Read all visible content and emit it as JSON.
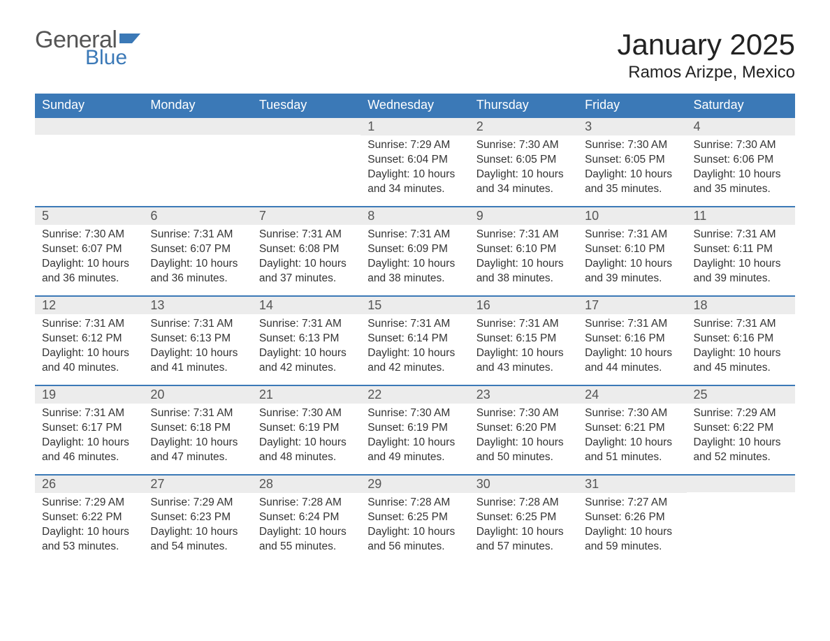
{
  "brand": {
    "word1": "General",
    "word2": "Blue"
  },
  "colors": {
    "accent": "#3b79b7",
    "header_bg": "#3b79b7",
    "header_text": "#ffffff",
    "daynum_bg": "#ececec",
    "body_text": "#333333",
    "page_bg": "#ffffff"
  },
  "typography": {
    "title_fontsize": 42,
    "location_fontsize": 24,
    "weekday_fontsize": 18,
    "body_fontsize": 15.5
  },
  "title": "January 2025",
  "location": "Ramos Arizpe, Mexico",
  "weekdays": [
    "Sunday",
    "Monday",
    "Tuesday",
    "Wednesday",
    "Thursday",
    "Friday",
    "Saturday"
  ],
  "layout": {
    "columns": 7,
    "rows": 5,
    "leading_blanks": 3,
    "trailing_blanks": 1
  },
  "days": [
    {
      "n": "1",
      "sunrise": "Sunrise: 7:29 AM",
      "sunset": "Sunset: 6:04 PM",
      "dl1": "Daylight: 10 hours",
      "dl2": "and 34 minutes."
    },
    {
      "n": "2",
      "sunrise": "Sunrise: 7:30 AM",
      "sunset": "Sunset: 6:05 PM",
      "dl1": "Daylight: 10 hours",
      "dl2": "and 34 minutes."
    },
    {
      "n": "3",
      "sunrise": "Sunrise: 7:30 AM",
      "sunset": "Sunset: 6:05 PM",
      "dl1": "Daylight: 10 hours",
      "dl2": "and 35 minutes."
    },
    {
      "n": "4",
      "sunrise": "Sunrise: 7:30 AM",
      "sunset": "Sunset: 6:06 PM",
      "dl1": "Daylight: 10 hours",
      "dl2": "and 35 minutes."
    },
    {
      "n": "5",
      "sunrise": "Sunrise: 7:30 AM",
      "sunset": "Sunset: 6:07 PM",
      "dl1": "Daylight: 10 hours",
      "dl2": "and 36 minutes."
    },
    {
      "n": "6",
      "sunrise": "Sunrise: 7:31 AM",
      "sunset": "Sunset: 6:07 PM",
      "dl1": "Daylight: 10 hours",
      "dl2": "and 36 minutes."
    },
    {
      "n": "7",
      "sunrise": "Sunrise: 7:31 AM",
      "sunset": "Sunset: 6:08 PM",
      "dl1": "Daylight: 10 hours",
      "dl2": "and 37 minutes."
    },
    {
      "n": "8",
      "sunrise": "Sunrise: 7:31 AM",
      "sunset": "Sunset: 6:09 PM",
      "dl1": "Daylight: 10 hours",
      "dl2": "and 38 minutes."
    },
    {
      "n": "9",
      "sunrise": "Sunrise: 7:31 AM",
      "sunset": "Sunset: 6:10 PM",
      "dl1": "Daylight: 10 hours",
      "dl2": "and 38 minutes."
    },
    {
      "n": "10",
      "sunrise": "Sunrise: 7:31 AM",
      "sunset": "Sunset: 6:10 PM",
      "dl1": "Daylight: 10 hours",
      "dl2": "and 39 minutes."
    },
    {
      "n": "11",
      "sunrise": "Sunrise: 7:31 AM",
      "sunset": "Sunset: 6:11 PM",
      "dl1": "Daylight: 10 hours",
      "dl2": "and 39 minutes."
    },
    {
      "n": "12",
      "sunrise": "Sunrise: 7:31 AM",
      "sunset": "Sunset: 6:12 PM",
      "dl1": "Daylight: 10 hours",
      "dl2": "and 40 minutes."
    },
    {
      "n": "13",
      "sunrise": "Sunrise: 7:31 AM",
      "sunset": "Sunset: 6:13 PM",
      "dl1": "Daylight: 10 hours",
      "dl2": "and 41 minutes."
    },
    {
      "n": "14",
      "sunrise": "Sunrise: 7:31 AM",
      "sunset": "Sunset: 6:13 PM",
      "dl1": "Daylight: 10 hours",
      "dl2": "and 42 minutes."
    },
    {
      "n": "15",
      "sunrise": "Sunrise: 7:31 AM",
      "sunset": "Sunset: 6:14 PM",
      "dl1": "Daylight: 10 hours",
      "dl2": "and 42 minutes."
    },
    {
      "n": "16",
      "sunrise": "Sunrise: 7:31 AM",
      "sunset": "Sunset: 6:15 PM",
      "dl1": "Daylight: 10 hours",
      "dl2": "and 43 minutes."
    },
    {
      "n": "17",
      "sunrise": "Sunrise: 7:31 AM",
      "sunset": "Sunset: 6:16 PM",
      "dl1": "Daylight: 10 hours",
      "dl2": "and 44 minutes."
    },
    {
      "n": "18",
      "sunrise": "Sunrise: 7:31 AM",
      "sunset": "Sunset: 6:16 PM",
      "dl1": "Daylight: 10 hours",
      "dl2": "and 45 minutes."
    },
    {
      "n": "19",
      "sunrise": "Sunrise: 7:31 AM",
      "sunset": "Sunset: 6:17 PM",
      "dl1": "Daylight: 10 hours",
      "dl2": "and 46 minutes."
    },
    {
      "n": "20",
      "sunrise": "Sunrise: 7:31 AM",
      "sunset": "Sunset: 6:18 PM",
      "dl1": "Daylight: 10 hours",
      "dl2": "and 47 minutes."
    },
    {
      "n": "21",
      "sunrise": "Sunrise: 7:30 AM",
      "sunset": "Sunset: 6:19 PM",
      "dl1": "Daylight: 10 hours",
      "dl2": "and 48 minutes."
    },
    {
      "n": "22",
      "sunrise": "Sunrise: 7:30 AM",
      "sunset": "Sunset: 6:19 PM",
      "dl1": "Daylight: 10 hours",
      "dl2": "and 49 minutes."
    },
    {
      "n": "23",
      "sunrise": "Sunrise: 7:30 AM",
      "sunset": "Sunset: 6:20 PM",
      "dl1": "Daylight: 10 hours",
      "dl2": "and 50 minutes."
    },
    {
      "n": "24",
      "sunrise": "Sunrise: 7:30 AM",
      "sunset": "Sunset: 6:21 PM",
      "dl1": "Daylight: 10 hours",
      "dl2": "and 51 minutes."
    },
    {
      "n": "25",
      "sunrise": "Sunrise: 7:29 AM",
      "sunset": "Sunset: 6:22 PM",
      "dl1": "Daylight: 10 hours",
      "dl2": "and 52 minutes."
    },
    {
      "n": "26",
      "sunrise": "Sunrise: 7:29 AM",
      "sunset": "Sunset: 6:22 PM",
      "dl1": "Daylight: 10 hours",
      "dl2": "and 53 minutes."
    },
    {
      "n": "27",
      "sunrise": "Sunrise: 7:29 AM",
      "sunset": "Sunset: 6:23 PM",
      "dl1": "Daylight: 10 hours",
      "dl2": "and 54 minutes."
    },
    {
      "n": "28",
      "sunrise": "Sunrise: 7:28 AM",
      "sunset": "Sunset: 6:24 PM",
      "dl1": "Daylight: 10 hours",
      "dl2": "and 55 minutes."
    },
    {
      "n": "29",
      "sunrise": "Sunrise: 7:28 AM",
      "sunset": "Sunset: 6:25 PM",
      "dl1": "Daylight: 10 hours",
      "dl2": "and 56 minutes."
    },
    {
      "n": "30",
      "sunrise": "Sunrise: 7:28 AM",
      "sunset": "Sunset: 6:25 PM",
      "dl1": "Daylight: 10 hours",
      "dl2": "and 57 minutes."
    },
    {
      "n": "31",
      "sunrise": "Sunrise: 7:27 AM",
      "sunset": "Sunset: 6:26 PM",
      "dl1": "Daylight: 10 hours",
      "dl2": "and 59 minutes."
    }
  ]
}
